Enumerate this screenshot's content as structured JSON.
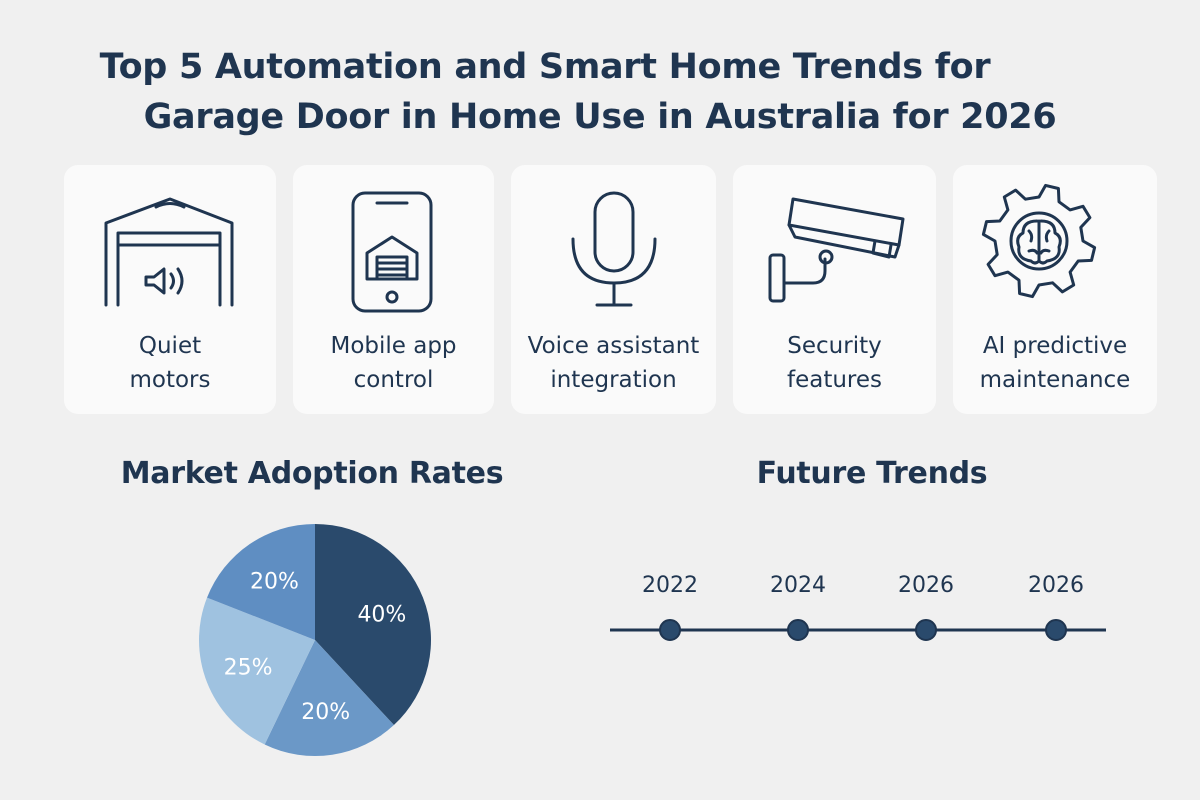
{
  "title": {
    "line1": "Top 5 Automation and Smart Home Trends for",
    "line2": "Garage Door in Home Use in Australia for 2026"
  },
  "cards": [
    {
      "icon": "garage-speaker-icon",
      "line1": "Quiet",
      "line2": "motors"
    },
    {
      "icon": "phone-garage-icon",
      "line1": "Mobile app",
      "line2": "control"
    },
    {
      "icon": "microphone-icon",
      "line1": "Voice assistant",
      "line2": "integration"
    },
    {
      "icon": "security-camera-icon",
      "line1": "Security",
      "line2": "features"
    },
    {
      "icon": "gear-brain-icon",
      "line1": "AI predictive",
      "line2": "maintenance"
    }
  ],
  "colors": {
    "navy": "#1f3550",
    "pie_dark": "#2a4a6c",
    "pie_mid": "#6b98c7",
    "pie_light": "#9fc2e0",
    "pie_steel": "#5f8ec2",
    "card_bg": "#fafafa",
    "page_bg": "#f0f0f0"
  },
  "adoption": {
    "title": "Market Adoption Rates",
    "chart_data": {
      "type": "pie",
      "slices": [
        {
          "label": "40%",
          "value": 40,
          "color": "#2a4a6c"
        },
        {
          "label": "20%",
          "value": 20,
          "color": "#6b98c7"
        },
        {
          "label": "25%",
          "value": 25,
          "color": "#9fc2e0"
        },
        {
          "label": "20%",
          "value": 20,
          "color": "#5f8ec2"
        }
      ]
    }
  },
  "future": {
    "title": "Future Trends",
    "years": [
      "2022",
      "2024",
      "2026",
      "2026"
    ]
  }
}
